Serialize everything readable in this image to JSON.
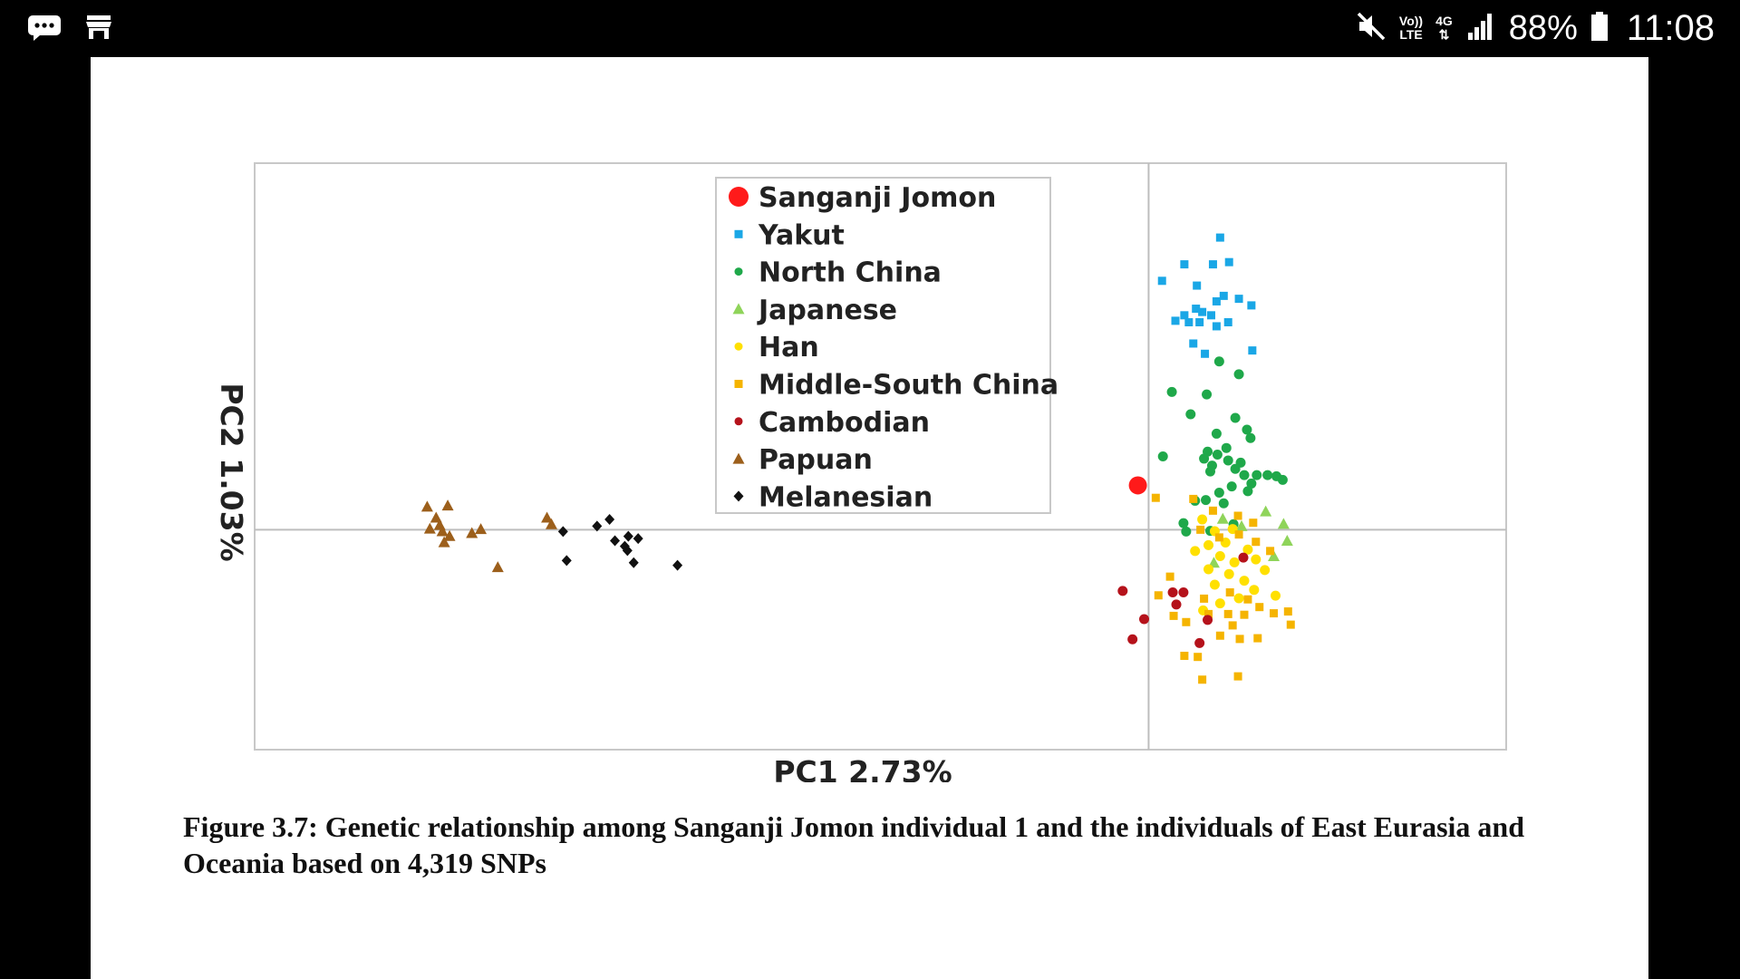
{
  "status_bar": {
    "left_icons": [
      "message-icon",
      "store-icon"
    ],
    "mute_icon": "mute-icon",
    "volte_line1": "Vo))",
    "volte_line2": "LTE",
    "network": "4G",
    "signal_icon": "signal-icon",
    "battery_percent": "88%",
    "battery_icon": "battery-icon",
    "time": "11:08"
  },
  "figure": {
    "caption": "Figure 3.7: Genetic relationship among Sanganji Jomon individual 1 and the individuals of East Eurasia and Oceania based on 4,319 SNPs"
  },
  "chart_data": {
    "type": "scatter",
    "title": "",
    "xlabel": "PC1 2.73%",
    "ylabel": "PC2 1.03%",
    "grid": false,
    "reference_lines": {
      "x": 0,
      "y": 0
    },
    "xlim": [
      -1.0,
      0.4
    ],
    "ylim": [
      -0.6,
      1.0
    ],
    "legend_position": "top-center",
    "series": [
      {
        "name": "Sanganji Jomon",
        "color": "#ff1a1a",
        "marker": "circle-large",
        "points": [
          [
            -0.012,
            0.121
          ]
        ]
      },
      {
        "name": "Yakut",
        "color": "#1aa7e6",
        "marker": "square",
        "points": [
          [
            0.08,
            0.797
          ],
          [
            0.04,
            0.724
          ],
          [
            0.072,
            0.724
          ],
          [
            0.09,
            0.73
          ],
          [
            0.015,
            0.679
          ],
          [
            0.054,
            0.666
          ],
          [
            0.084,
            0.638
          ],
          [
            0.076,
            0.623
          ],
          [
            0.101,
            0.63
          ],
          [
            0.04,
            0.585
          ],
          [
            0.06,
            0.594
          ],
          [
            0.07,
            0.585
          ],
          [
            0.03,
            0.57
          ],
          [
            0.045,
            0.566
          ],
          [
            0.057,
            0.566
          ],
          [
            0.053,
            0.603
          ],
          [
            0.089,
            0.566
          ],
          [
            0.076,
            0.555
          ],
          [
            0.05,
            0.508
          ],
          [
            0.115,
            0.612
          ],
          [
            0.116,
            0.489
          ],
          [
            0.063,
            0.48
          ]
        ]
      },
      {
        "name": "North China",
        "color": "#1fa84a",
        "marker": "circle",
        "points": [
          [
            0.079,
            0.459
          ],
          [
            0.101,
            0.424
          ],
          [
            0.026,
            0.376
          ],
          [
            0.065,
            0.369
          ],
          [
            0.047,
            0.315
          ],
          [
            0.097,
            0.305
          ],
          [
            0.076,
            0.262
          ],
          [
            0.11,
            0.273
          ],
          [
            0.114,
            0.25
          ],
          [
            0.016,
            0.2
          ],
          [
            0.066,
            0.213
          ],
          [
            0.087,
            0.223
          ],
          [
            0.077,
            0.205
          ],
          [
            0.062,
            0.194
          ],
          [
            0.089,
            0.189
          ],
          [
            0.103,
            0.183
          ],
          [
            0.071,
            0.175
          ],
          [
            0.069,
            0.159
          ],
          [
            0.097,
            0.166
          ],
          [
            0.121,
            0.149
          ],
          [
            0.107,
            0.149
          ],
          [
            0.133,
            0.149
          ],
          [
            0.15,
            0.136
          ],
          [
            0.143,
            0.146
          ],
          [
            0.115,
            0.126
          ],
          [
            0.093,
            0.118
          ],
          [
            0.111,
            0.105
          ],
          [
            0.079,
            0.101
          ],
          [
            0.052,
            0.079
          ],
          [
            0.064,
            0.081
          ],
          [
            0.084,
            0.072
          ],
          [
            0.039,
            0.018
          ],
          [
            0.042,
            -0.005
          ],
          [
            0.069,
            -0.003
          ],
          [
            0.095,
            0.015
          ]
        ]
      },
      {
        "name": "Japanese",
        "color": "#8fd45a",
        "marker": "triangle",
        "points": [
          [
            0.151,
            0.016
          ],
          [
            0.155,
            -0.03
          ],
          [
            0.104,
            0.01
          ],
          [
            0.083,
            0.03
          ],
          [
            0.131,
            0.05
          ],
          [
            0.14,
            -0.072
          ],
          [
            0.073,
            -0.09
          ]
        ]
      },
      {
        "name": "Han",
        "color": "#ffe000",
        "marker": "circle",
        "points": [
          [
            0.06,
            0.028
          ],
          [
            0.074,
            -0.004
          ],
          [
            0.094,
            0.002
          ],
          [
            0.067,
            -0.042
          ],
          [
            0.086,
            -0.035
          ],
          [
            0.052,
            -0.058
          ],
          [
            0.111,
            -0.054
          ],
          [
            0.08,
            -0.072
          ],
          [
            0.096,
            -0.089
          ],
          [
            0.12,
            -0.081
          ],
          [
            0.067,
            -0.108
          ],
          [
            0.09,
            -0.121
          ],
          [
            0.107,
            -0.139
          ],
          [
            0.074,
            -0.15
          ],
          [
            0.13,
            -0.11
          ],
          [
            0.118,
            -0.164
          ],
          [
            0.142,
            -0.18
          ],
          [
            0.101,
            -0.187
          ],
          [
            0.08,
            -0.201
          ],
          [
            0.061,
            -0.22
          ]
        ]
      },
      {
        "name": "Middle-South China",
        "color": "#f5b400",
        "marker": "square",
        "points": [
          [
            0.008,
            0.087
          ],
          [
            0.05,
            0.084
          ],
          [
            0.072,
            0.052
          ],
          [
            0.1,
            0.038
          ],
          [
            0.117,
            0.019
          ],
          [
            0.058,
            0.0
          ],
          [
            0.079,
            -0.021
          ],
          [
            0.101,
            -0.013
          ],
          [
            0.12,
            -0.033
          ],
          [
            0.136,
            -0.058
          ],
          [
            0.024,
            -0.128
          ],
          [
            0.011,
            -0.179
          ],
          [
            0.028,
            -0.235
          ],
          [
            0.042,
            -0.252
          ],
          [
            0.062,
            -0.188
          ],
          [
            0.067,
            -0.23
          ],
          [
            0.091,
            -0.171
          ],
          [
            0.111,
            -0.19
          ],
          [
            0.124,
            -0.211
          ],
          [
            0.14,
            -0.228
          ],
          [
            0.159,
            -0.259
          ],
          [
            0.094,
            -0.261
          ],
          [
            0.08,
            -0.289
          ],
          [
            0.102,
            -0.298
          ],
          [
            0.122,
            -0.296
          ],
          [
            0.04,
            -0.344
          ],
          [
            0.055,
            -0.347
          ],
          [
            0.06,
            -0.409
          ],
          [
            0.1,
            -0.4
          ],
          [
            0.156,
            -0.223
          ],
          [
            0.107,
            -0.232
          ],
          [
            0.089,
            -0.23
          ]
        ]
      },
      {
        "name": "Cambodian",
        "color": "#b5121b",
        "marker": "circle",
        "points": [
          [
            -0.029,
            -0.167
          ],
          [
            0.027,
            -0.171
          ],
          [
            0.039,
            -0.171
          ],
          [
            0.031,
            -0.204
          ],
          [
            -0.005,
            -0.244
          ],
          [
            -0.018,
            -0.299
          ],
          [
            0.066,
            -0.246
          ],
          [
            0.057,
            -0.309
          ],
          [
            0.106,
            -0.076
          ]
        ]
      },
      {
        "name": "Papuan",
        "color": "#9c5f1b",
        "marker": "triangle",
        "points": [
          [
            -0.807,
            0.063
          ],
          [
            -0.784,
            0.066
          ],
          [
            -0.797,
            0.033
          ],
          [
            -0.793,
            0.013
          ],
          [
            -0.804,
            0.003
          ],
          [
            -0.79,
            -0.004
          ],
          [
            -0.782,
            -0.017
          ],
          [
            -0.788,
            -0.034
          ],
          [
            -0.757,
            -0.009
          ],
          [
            -0.747,
            0.002
          ],
          [
            -0.728,
            -0.102
          ],
          [
            -0.673,
            0.033
          ],
          [
            -0.668,
            0.015
          ]
        ]
      },
      {
        "name": "Melanesian",
        "color": "#111111",
        "marker": "diamond",
        "points": [
          [
            -0.655,
            -0.005
          ],
          [
            -0.617,
            0.01
          ],
          [
            -0.603,
            0.028
          ],
          [
            -0.597,
            -0.03
          ],
          [
            -0.586,
            -0.045
          ],
          [
            -0.582,
            -0.018
          ],
          [
            -0.583,
            -0.057
          ],
          [
            -0.571,
            -0.024
          ],
          [
            -0.576,
            -0.09
          ],
          [
            -0.651,
            -0.084
          ],
          [
            -0.527,
            -0.097
          ]
        ]
      }
    ]
  }
}
